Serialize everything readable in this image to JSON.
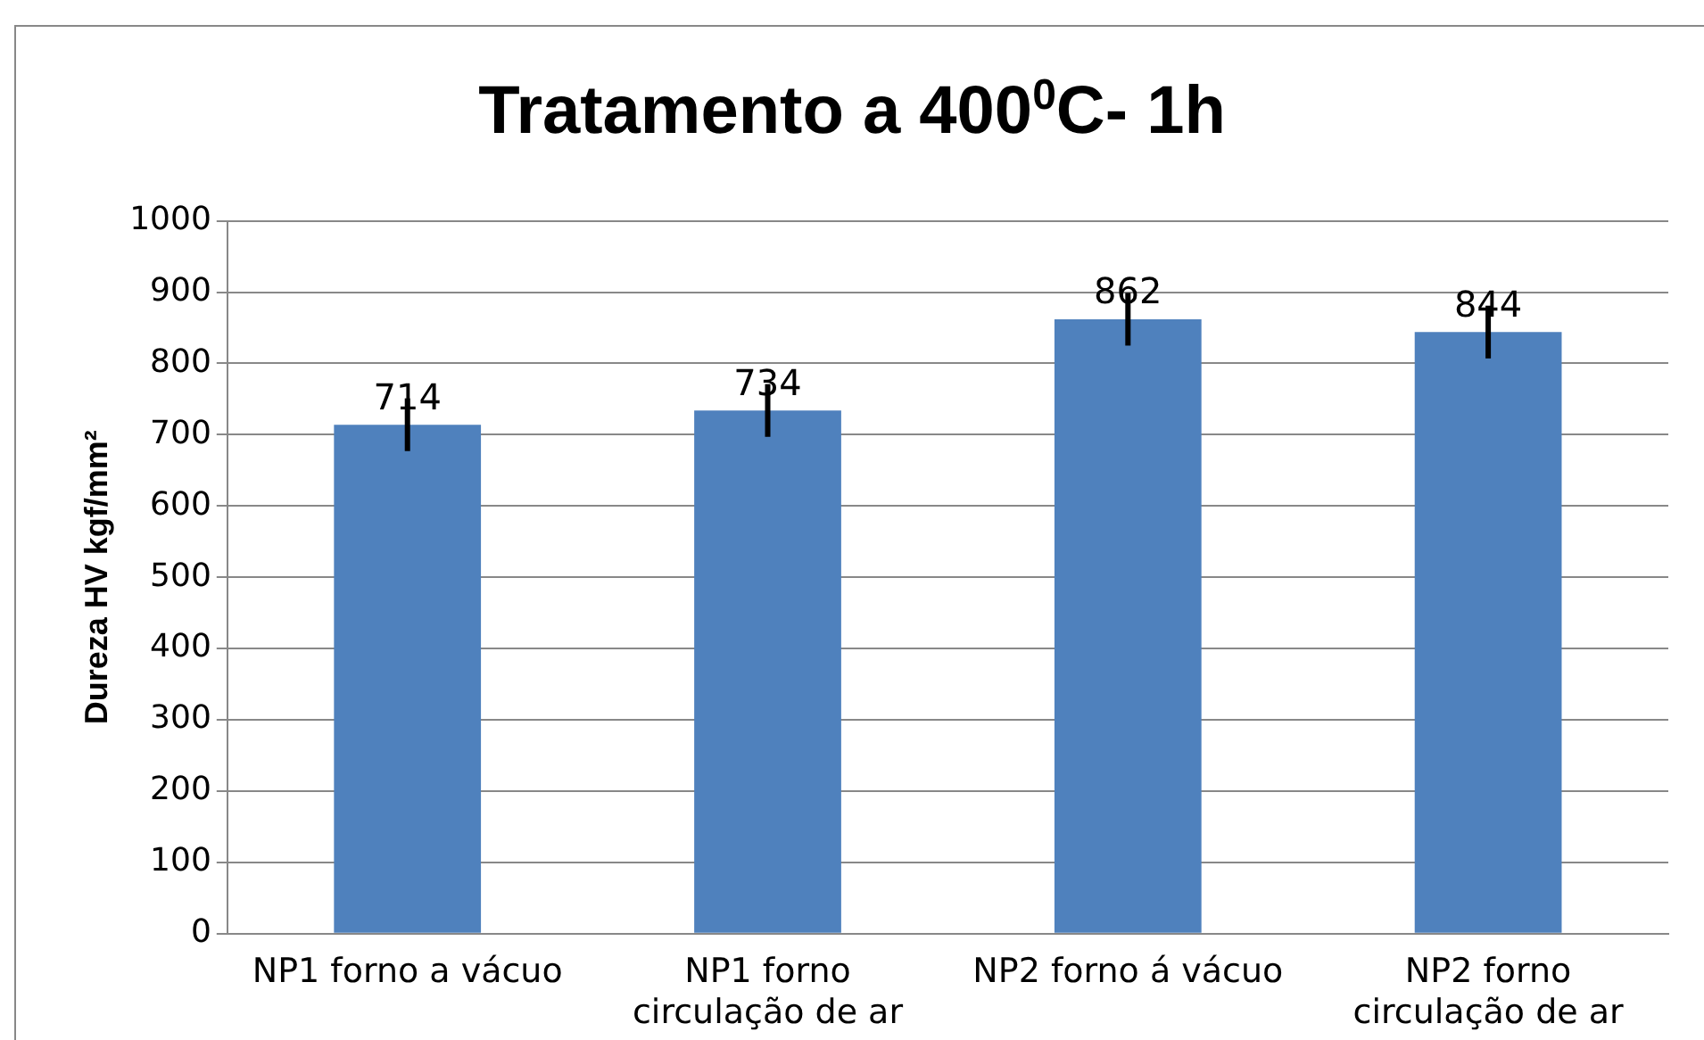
{
  "chart_data": {
    "type": "bar",
    "title": "Tratamento a 400$^{0}$C- 1h",
    "ylabel": "Dureza HV kgf/mm²",
    "categories": [
      "NP1 forno a vácuo",
      "NP1 forno circulação de ar",
      "NP2 forno á vácuo",
      "NP2 forno circulação de ar"
    ],
    "values": [
      714,
      734,
      862,
      844
    ],
    "errors": [
      37,
      37,
      37,
      37
    ],
    "color": "#4f81bd",
    "ylim": [
      0,
      1000
    ],
    "yticks": [
      0,
      100,
      200,
      300,
      400,
      500,
      600,
      700,
      800,
      900,
      1000
    ],
    "grid": "y",
    "data_labels": true,
    "legend": false
  }
}
